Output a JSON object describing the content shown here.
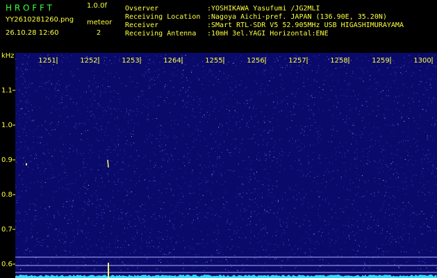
{
  "header": {
    "app": "H R O F F T",
    "version": "1.0.0f",
    "file": "YY2610281260.png",
    "datetime": "26.10.28 12:60",
    "meteor_label": "meteor",
    "meteor_count": "2",
    "fields": [
      {
        "label": "Ovserver",
        "value": ":YOSHIKAWA Yasufumi /JG2MLI"
      },
      {
        "label": "Receiving Location",
        "value": ":Nagoya Aichi-pref. JAPAN (136.90E, 35.20N)"
      },
      {
        "label": "Receiver",
        "value": ":SMart RTL-SDR V5 52.905MHz USB HIGASHIMURAYAMA"
      },
      {
        "label": "Receiving Antenna",
        "value": ":10mH 3el.YAGI Horizontal:ENE"
      }
    ]
  },
  "plot": {
    "y_unit": "kHz",
    "x_ticks": [
      "1251",
      "1252",
      "1253",
      "1264",
      "1255",
      "1256",
      "1257",
      "1258",
      "1259",
      "1300"
    ],
    "y_ticks": [
      "1.1",
      "1.0",
      "0.9",
      "0.8",
      "0.7",
      "0.6"
    ]
  }
}
